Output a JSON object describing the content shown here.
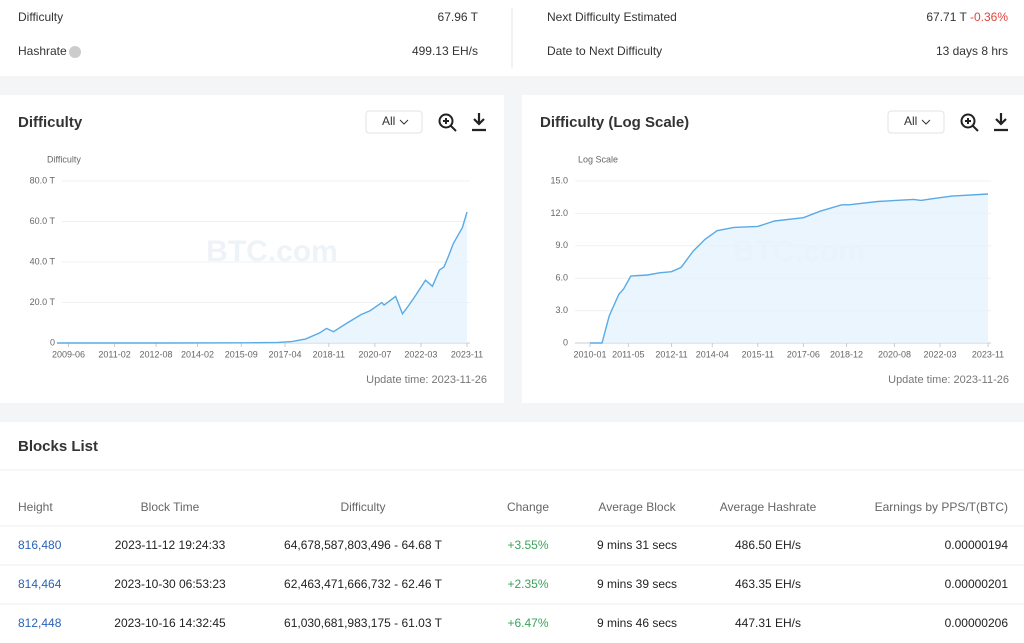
{
  "summary": {
    "difficulty": {
      "label": "Difficulty",
      "value": "67.96 T"
    },
    "hashrate": {
      "label": "Hashrate",
      "value": "499.13 EH/s"
    },
    "next": {
      "label": "Next Difficulty Estimated",
      "value": "67.71 T",
      "change": "-0.36%"
    },
    "date_next": {
      "label": "Date to Next Difficulty",
      "value": "13 days 8 hrs"
    }
  },
  "chart_data": [
    {
      "type": "line",
      "title": "Difficulty",
      "range": "All",
      "ylabel": "Difficulty",
      "watermark": "BTC.com",
      "update": "Update time: 2023-11-26",
      "color": "#5aaae6",
      "x": [
        "2009-01",
        "2013-01",
        "2016-01",
        "2017-01",
        "2017-07",
        "2018-01",
        "2018-07",
        "2018-10",
        "2019-01",
        "2019-07",
        "2020-01",
        "2020-05",
        "2020-10",
        "2020-11",
        "2021-04",
        "2021-07",
        "2021-10",
        "2022-01",
        "2022-05",
        "2022-08",
        "2022-11",
        "2023-01",
        "2023-03",
        "2023-05",
        "2023-07",
        "2023-09",
        "2023-11"
      ],
      "values": [
        0,
        0.003,
        0.1,
        0.3,
        0.7,
        2,
        5,
        7.2,
        5.6,
        9.9,
        14,
        16,
        20,
        18.7,
        23,
        14.4,
        19,
        24,
        31,
        28,
        36,
        37.6,
        43,
        49,
        53,
        57,
        64.7
      ],
      "xlim": [
        "2009-01",
        "2023-11"
      ],
      "xticks": [
        "2009-06",
        "2011-02",
        "2012-08",
        "2014-02",
        "2015-09",
        "2017-04",
        "2018-11",
        "2020-07",
        "2022-03",
        "2023-11"
      ],
      "ylim": [
        0,
        80
      ],
      "yticks": [
        0,
        {
          "value": 20,
          "label": "20.0 T"
        },
        {
          "value": 40,
          "label": "40.0 T"
        },
        {
          "value": 60,
          "label": "60.0 T"
        },
        {
          "value": 80,
          "label": "80.0 T"
        }
      ]
    },
    {
      "type": "line",
      "title": "Difficulty (Log Scale)",
      "range": "All",
      "ylabel": "Log Scale",
      "watermark": "BTC.com",
      "update": "Update time: 2023-11-26",
      "color": "#5aaae6",
      "x": [
        "2010-01",
        "2010-06",
        "2010-09",
        "2011-01",
        "2011-03",
        "2011-06",
        "2012-01",
        "2012-06",
        "2012-11",
        "2013-03",
        "2013-08",
        "2014-01",
        "2014-06",
        "2015-01",
        "2015-11",
        "2016-06",
        "2017-06",
        "2018-01",
        "2018-10",
        "2019-01",
        "2020-01",
        "2021-04",
        "2021-07",
        "2022-01",
        "2022-08",
        "2023-11"
      ],
      "values": [
        0,
        0,
        2.5,
        4.5,
        5,
        6.2,
        6.3,
        6.5,
        6.6,
        7,
        8.5,
        9.6,
        10.4,
        10.7,
        10.8,
        11.3,
        11.6,
        12.2,
        12.8,
        12.8,
        13.1,
        13.3,
        13.2,
        13.4,
        13.6,
        13.8
      ],
      "xlim": [
        "2010-01",
        "2023-11"
      ],
      "xticks": [
        "2010-01",
        "2011-05",
        "2012-11",
        "2014-04",
        "2015-11",
        "2017-06",
        "2018-12",
        "2020-08",
        "2022-03",
        "2023-11"
      ],
      "ylim": [
        0,
        15
      ],
      "yticks": [
        0,
        {
          "value": 3,
          "label": "3.0"
        },
        {
          "value": 6,
          "label": "6.0"
        },
        {
          "value": 9,
          "label": "9.0"
        },
        {
          "value": 12,
          "label": "12.0"
        },
        {
          "value": 15,
          "label": "15.0"
        }
      ]
    }
  ],
  "blocks": {
    "title": "Blocks List",
    "columns": [
      "Height",
      "Block Time",
      "Difficulty",
      "Change",
      "Average Block",
      "Average Hashrate",
      "Earnings by PPS/T(BTC)"
    ],
    "rows": [
      [
        "816,480",
        "2023-11-12 19:24:33",
        "64,678,587,803,496 - 64.68 T",
        "+3.55%",
        "9 mins 31 secs",
        "486.50 EH/s",
        "0.00000194"
      ],
      [
        "814,464",
        "2023-10-30 06:53:23",
        "62,463,471,666,732 - 62.46 T",
        "+2.35%",
        "9 mins 39 secs",
        "463.35 EH/s",
        "0.00000201"
      ],
      [
        "812,448",
        "2023-10-16 14:32:45",
        "61,030,681,983,175 - 61.03 T",
        "+6.47%",
        "9 mins 46 secs",
        "447.31 EH/s",
        "0.00000206"
      ]
    ]
  }
}
